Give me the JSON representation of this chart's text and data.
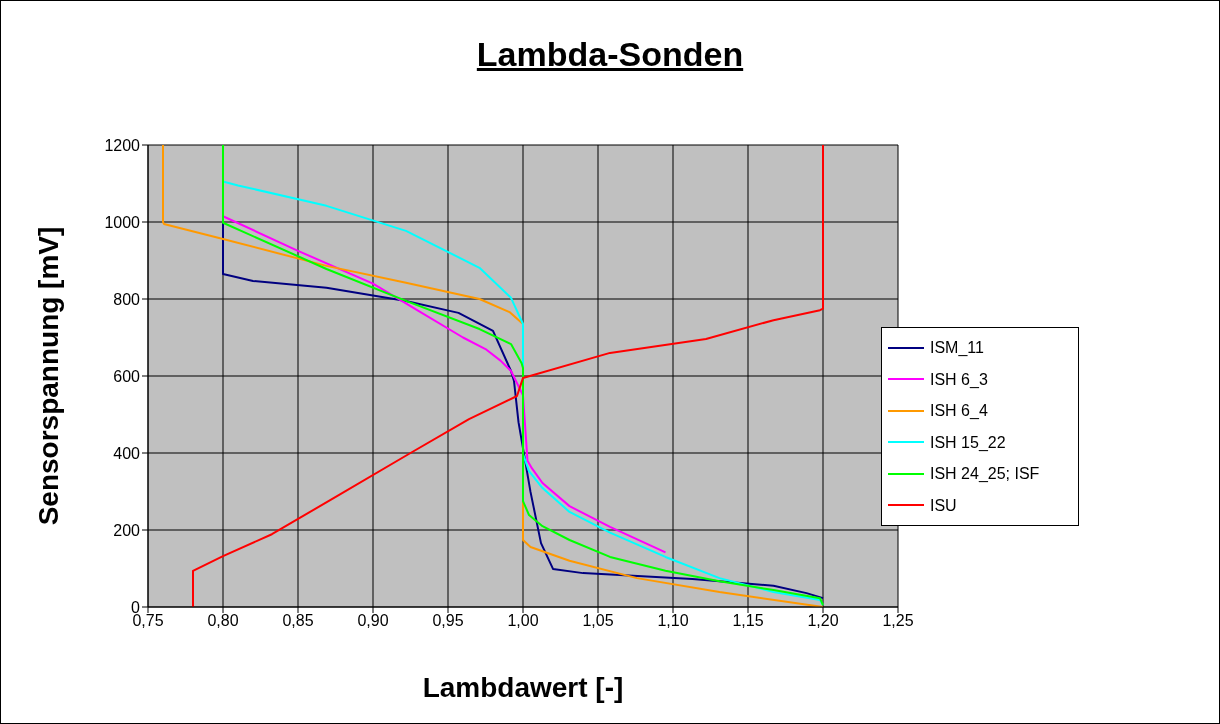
{
  "chart_data": {
    "type": "line",
    "title": "Lambda-Sonden",
    "xlabel": "Lambdawert [-]",
    "ylabel": "Sensorspannung [mV]",
    "xlim": [
      0.75,
      1.25
    ],
    "xticks": [
      {
        "value": 0.75,
        "label": "0,75"
      },
      {
        "value": 0.8,
        "label": "0,80"
      },
      {
        "value": 0.85,
        "label": "0,85"
      },
      {
        "value": 0.9,
        "label": "0,90"
      },
      {
        "value": 0.95,
        "label": "0,95"
      },
      {
        "value": 1.0,
        "label": "1,00"
      },
      {
        "value": 1.05,
        "label": "1,05"
      },
      {
        "value": 1.1,
        "label": "1,10"
      },
      {
        "value": 1.15,
        "label": "1,15"
      },
      {
        "value": 1.2,
        "label": "1,20"
      },
      {
        "value": 1.25,
        "label": "1,25"
      }
    ],
    "ylim": [
      0,
      1200
    ],
    "yticks": [
      0,
      200,
      400,
      600,
      800,
      1000,
      1200
    ],
    "grid": true,
    "legend": "right",
    "marker": "none",
    "line_style": "solid",
    "series": [
      {
        "name": "ISM_11",
        "color": "#000080",
        "x": [
          0.8,
          0.8,
          0.82,
          0.869,
          0.922,
          0.957,
          0.98,
          0.992,
          0.994,
          0.997,
          1.005,
          1.012,
          1.02,
          1.04,
          1.113,
          1.167,
          1.189,
          1.2
        ],
        "values": [
          1010,
          865,
          847,
          829,
          795,
          764,
          717,
          613,
          587,
          480,
          299,
          166,
          99,
          88,
          73,
          55,
          36,
          23
        ]
      },
      {
        "name": "ISH 6_3",
        "color": "#ff00ff",
        "x": [
          0.8,
          0.85,
          0.9,
          0.93,
          0.96,
          0.975,
          0.985,
          0.992,
          1.0,
          1.003,
          1.006,
          1.013,
          1.031,
          1.058,
          1.095
        ],
        "values": [
          1015,
          925,
          840,
          770,
          700,
          670,
          640,
          613,
          550,
          380,
          360,
          322,
          262,
          208,
          142
        ]
      },
      {
        "name": "ISH 6_4",
        "color": "#ff9900",
        "x": [
          0.76,
          0.76,
          0.7606,
          0.8,
          0.869,
          0.922,
          0.971,
          0.991,
          1.0,
          1.0,
          1.005,
          1.031,
          1.076,
          1.131,
          1.2
        ],
        "values": [
          1200,
          1000,
          995,
          956,
          886,
          842,
          800,
          766,
          735,
          174,
          156,
          120,
          75,
          39,
          0
        ]
      },
      {
        "name": "ISH 15_22",
        "color": "#00ffff",
        "x": [
          0.8,
          0.81,
          0.869,
          0.922,
          0.971,
          0.992,
          1.0,
          1.0,
          1.004,
          1.013,
          1.031,
          1.058,
          1.095,
          1.131,
          1.167,
          1.198,
          1.2
        ],
        "values": [
          1105,
          1095,
          1042,
          977,
          881,
          803,
          735,
          397,
          353,
          309,
          247,
          193,
          130,
          75,
          39,
          18,
          5
        ]
      },
      {
        "name": "ISH 24_25; ISF",
        "color": "#00ff00",
        "x": [
          0.8,
          0.8,
          0.869,
          0.922,
          0.971,
          0.992,
          0.999,
          1.0,
          1.0,
          1.004,
          1.013,
          1.031,
          1.058,
          1.095,
          1.131,
          1.167,
          1.198,
          1.2
        ],
        "values": [
          1200,
          998,
          878,
          795,
          722,
          683,
          634,
          621,
          275,
          239,
          210,
          174,
          130,
          94,
          67,
          44,
          23,
          5
        ]
      },
      {
        "name": "ISU",
        "color": "#ff0000",
        "x": [
          0.78,
          0.78,
          0.8,
          0.8326,
          0.876,
          0.925,
          0.964,
          0.996,
          1.0,
          1.058,
          1.122,
          1.167,
          1.198,
          1.2,
          1.2
        ],
        "values": [
          0,
          94,
          132,
          189,
          288,
          400,
          488,
          548,
          595,
          660,
          696,
          745,
          771,
          775,
          1200
        ]
      }
    ]
  }
}
